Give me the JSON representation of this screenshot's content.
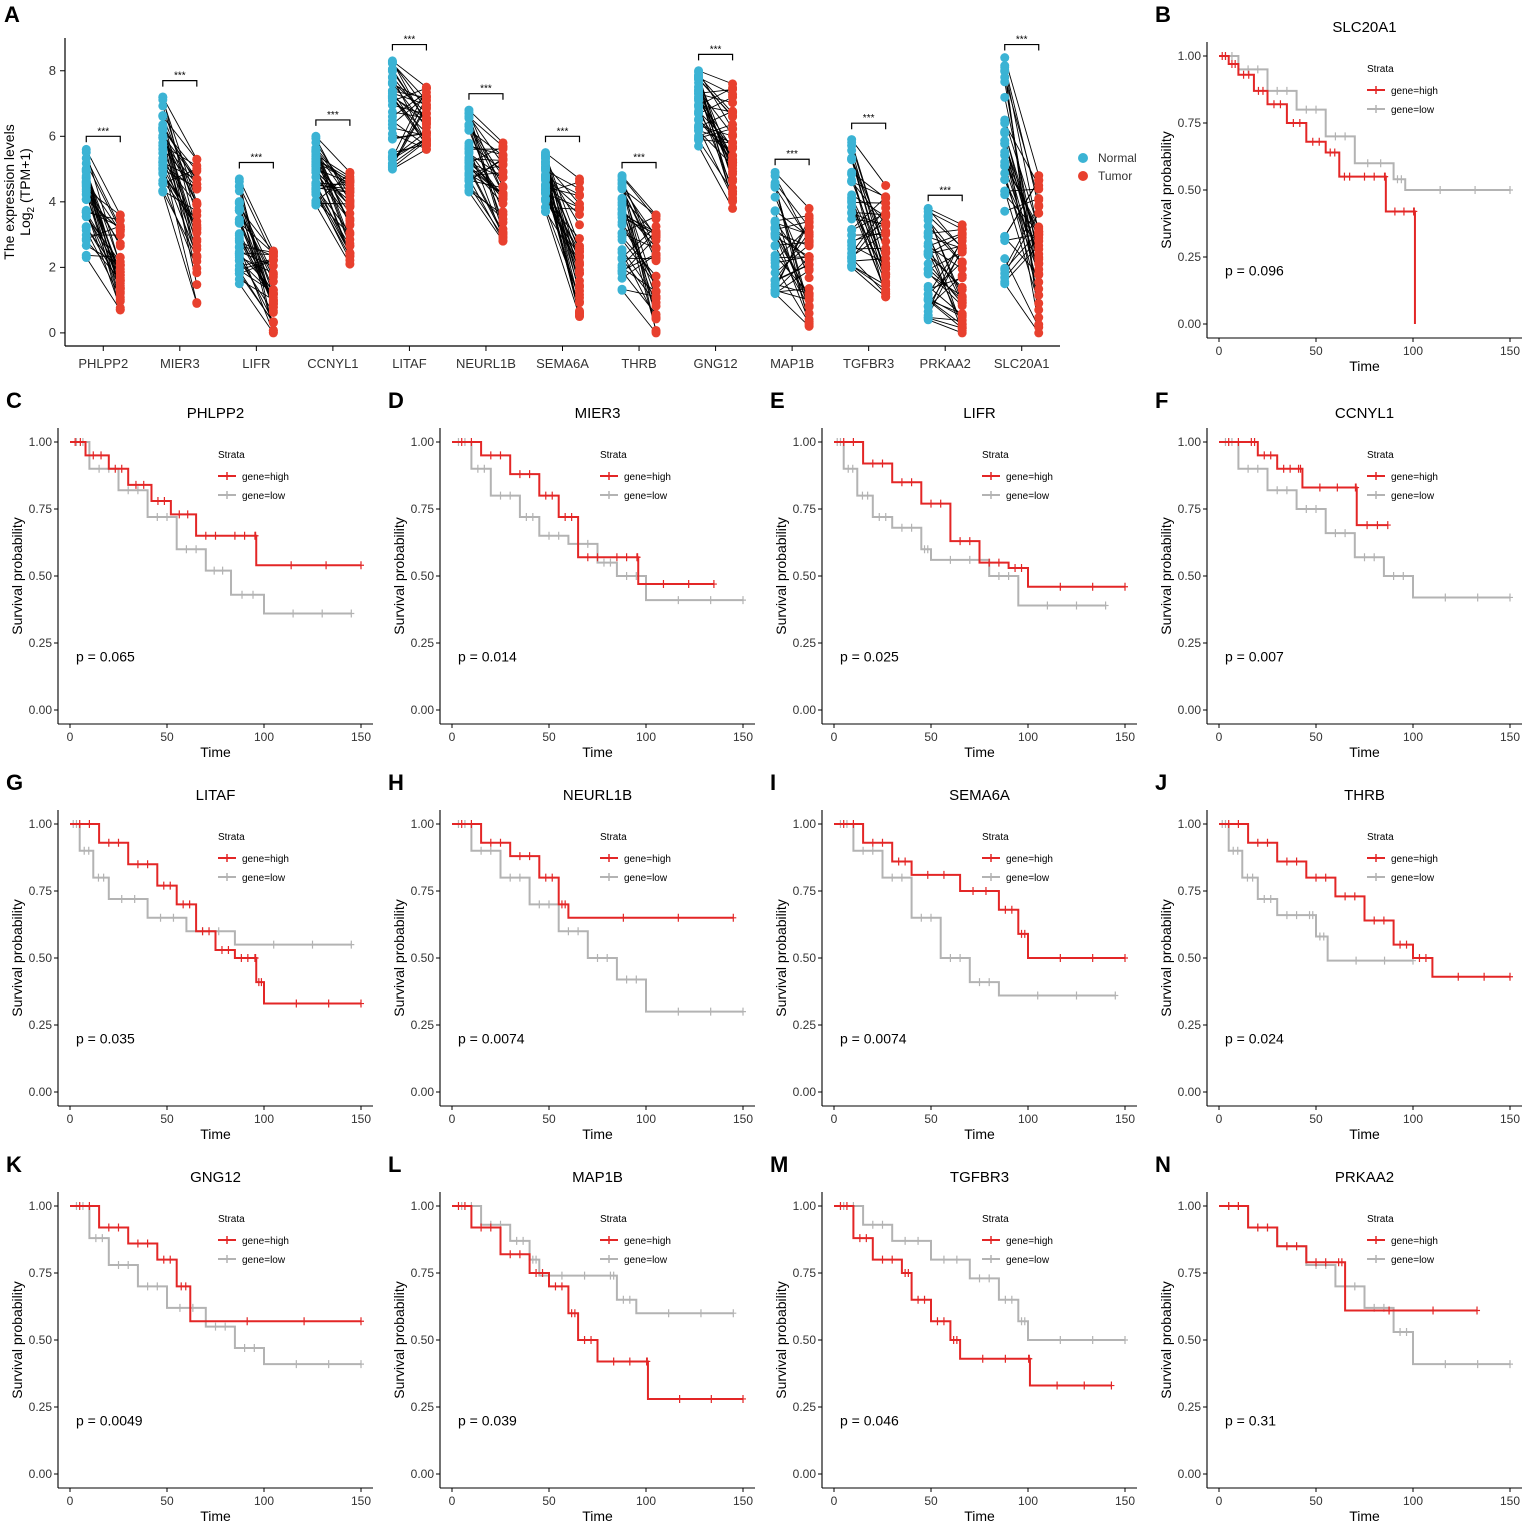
{
  "chart_data": [
    {
      "panel": "A",
      "type": "scatter",
      "subtype": "paired-dot-plot",
      "ylabel_line1": "The expression levels",
      "ylabel_line2": "Log",
      "ylabel_sub": "2",
      "ylabel_tail": " (TPM+1)",
      "ylim": [
        -0.4,
        9.0
      ],
      "yticks": [
        0,
        2,
        4,
        6,
        8
      ],
      "significance": "***",
      "legend": [
        {
          "name": "Normal",
          "color": "#3bb3d4"
        },
        {
          "name": "Tumor",
          "color": "#e8402e"
        }
      ],
      "genes": [
        {
          "name": "PHLPP2",
          "normal": [
            2.3,
            5.6
          ],
          "tumor": [
            0.7,
            3.6
          ],
          "bracket_y": 6.0
        },
        {
          "name": "MIER3",
          "normal": [
            4.3,
            7.2
          ],
          "tumor": [
            0.9,
            5.3
          ],
          "bracket_y": 7.7
        },
        {
          "name": "LIFR",
          "normal": [
            1.5,
            4.7
          ],
          "tumor": [
            0.0,
            2.5
          ],
          "bracket_y": 5.2
        },
        {
          "name": "CCNYL1",
          "normal": [
            3.9,
            6.0
          ],
          "tumor": [
            2.1,
            4.9
          ],
          "bracket_y": 6.5
        },
        {
          "name": "LITAF",
          "normal": [
            5.0,
            8.3
          ],
          "tumor": [
            5.6,
            7.5
          ],
          "bracket_y": 8.8
        },
        {
          "name": "NEURL1B",
          "normal": [
            4.3,
            6.8
          ],
          "tumor": [
            2.8,
            5.8
          ],
          "bracket_y": 7.3
        },
        {
          "name": "SEMA6A",
          "normal": [
            3.7,
            5.5
          ],
          "tumor": [
            0.5,
            4.7
          ],
          "bracket_y": 6.0
        },
        {
          "name": "THRB",
          "normal": [
            1.3,
            4.8
          ],
          "tumor": [
            0.0,
            3.6
          ],
          "bracket_y": 5.2
        },
        {
          "name": "GNG12",
          "normal": [
            5.7,
            8.0
          ],
          "tumor": [
            3.8,
            7.6
          ],
          "bracket_y": 8.5
        },
        {
          "name": "MAP1B",
          "normal": [
            1.2,
            4.9
          ],
          "tumor": [
            0.2,
            3.8
          ],
          "bracket_y": 5.3
        },
        {
          "name": "TGFBR3",
          "normal": [
            2.0,
            5.9
          ],
          "tumor": [
            1.1,
            4.5
          ],
          "bracket_y": 6.4
        },
        {
          "name": "PRKAA2",
          "normal": [
            0.4,
            3.8
          ],
          "tumor": [
            0.0,
            3.3
          ],
          "bracket_y": 4.2
        },
        {
          "name": "SLC20A1",
          "normal": [
            1.5,
            8.4
          ],
          "tumor": [
            0.0,
            4.8
          ],
          "bracket_y": 8.8
        }
      ]
    },
    {
      "panel": "B",
      "type": "line",
      "subtype": "kaplan-meier",
      "title": "SLC20A1",
      "pvalue": "p = 0.096",
      "high": [
        [
          0,
          1.0
        ],
        [
          5,
          0.97
        ],
        [
          10,
          0.93
        ],
        [
          18,
          0.87
        ],
        [
          25,
          0.82
        ],
        [
          35,
          0.75
        ],
        [
          45,
          0.68
        ],
        [
          55,
          0.64
        ],
        [
          62,
          0.55
        ],
        [
          70,
          0.55
        ],
        [
          85,
          0.55
        ],
        [
          86,
          0.42
        ],
        [
          100,
          0.42
        ],
        [
          101,
          0.0
        ]
      ],
      "low": [
        [
          0,
          1.0
        ],
        [
          10,
          0.95
        ],
        [
          25,
          0.87
        ],
        [
          40,
          0.8
        ],
        [
          55,
          0.7
        ],
        [
          70,
          0.6
        ],
        [
          90,
          0.54
        ],
        [
          96,
          0.5
        ],
        [
          150,
          0.5
        ]
      ]
    },
    {
      "panel": "C",
      "type": "line",
      "subtype": "kaplan-meier",
      "title": "PHLPP2",
      "pvalue": "p = 0.065",
      "high": [
        [
          0,
          1.0
        ],
        [
          8,
          0.95
        ],
        [
          20,
          0.9
        ],
        [
          30,
          0.84
        ],
        [
          42,
          0.78
        ],
        [
          52,
          0.73
        ],
        [
          65,
          0.65
        ],
        [
          80,
          0.65
        ],
        [
          95,
          0.65
        ],
        [
          96,
          0.54
        ],
        [
          150,
          0.54
        ]
      ],
      "low": [
        [
          0,
          1.0
        ],
        [
          10,
          0.9
        ],
        [
          25,
          0.82
        ],
        [
          40,
          0.72
        ],
        [
          55,
          0.6
        ],
        [
          70,
          0.52
        ],
        [
          83,
          0.43
        ],
        [
          100,
          0.36
        ],
        [
          145,
          0.36
        ]
      ]
    },
    {
      "panel": "D",
      "type": "line",
      "subtype": "kaplan-meier",
      "title": "MIER3",
      "pvalue": "p = 0.014",
      "high": [
        [
          0,
          1.0
        ],
        [
          15,
          0.95
        ],
        [
          30,
          0.88
        ],
        [
          45,
          0.8
        ],
        [
          55,
          0.72
        ],
        [
          65,
          0.57
        ],
        [
          80,
          0.57
        ],
        [
          95,
          0.57
        ],
        [
          96,
          0.47
        ],
        [
          135,
          0.47
        ]
      ],
      "low": [
        [
          0,
          1.0
        ],
        [
          10,
          0.9
        ],
        [
          20,
          0.8
        ],
        [
          35,
          0.72
        ],
        [
          45,
          0.65
        ],
        [
          60,
          0.62
        ],
        [
          75,
          0.55
        ],
        [
          85,
          0.5
        ],
        [
          100,
          0.41
        ],
        [
          150,
          0.41
        ]
      ]
    },
    {
      "panel": "E",
      "type": "line",
      "subtype": "kaplan-meier",
      "title": "LIFR",
      "pvalue": "p = 0.025",
      "high": [
        [
          0,
          1.0
        ],
        [
          15,
          0.92
        ],
        [
          30,
          0.85
        ],
        [
          45,
          0.77
        ],
        [
          60,
          0.63
        ],
        [
          75,
          0.55
        ],
        [
          90,
          0.53
        ],
        [
          100,
          0.46
        ],
        [
          150,
          0.46
        ]
      ],
      "low": [
        [
          0,
          1.0
        ],
        [
          5,
          0.9
        ],
        [
          12,
          0.8
        ],
        [
          20,
          0.72
        ],
        [
          30,
          0.68
        ],
        [
          45,
          0.6
        ],
        [
          50,
          0.56
        ],
        [
          80,
          0.5
        ],
        [
          95,
          0.39
        ],
        [
          140,
          0.39
        ]
      ]
    },
    {
      "panel": "F",
      "type": "line",
      "subtype": "kaplan-meier",
      "title": "CCNYL1",
      "pvalue": "p = 0.007",
      "high": [
        [
          0,
          1.0
        ],
        [
          15,
          1.0
        ],
        [
          20,
          0.95
        ],
        [
          30,
          0.9
        ],
        [
          40,
          0.9
        ],
        [
          43,
          0.83
        ],
        [
          70,
          0.83
        ],
        [
          71,
          0.69
        ],
        [
          87,
          0.69
        ]
      ],
      "low": [
        [
          0,
          1.0
        ],
        [
          10,
          0.9
        ],
        [
          25,
          0.82
        ],
        [
          40,
          0.75
        ],
        [
          55,
          0.66
        ],
        [
          70,
          0.57
        ],
        [
          85,
          0.5
        ],
        [
          100,
          0.42
        ],
        [
          150,
          0.42
        ]
      ]
    },
    {
      "panel": "G",
      "type": "line",
      "subtype": "kaplan-meier",
      "title": "LITAF",
      "pvalue": "p = 0.035",
      "high": [
        [
          0,
          1.0
        ],
        [
          15,
          0.93
        ],
        [
          30,
          0.85
        ],
        [
          45,
          0.77
        ],
        [
          55,
          0.7
        ],
        [
          65,
          0.6
        ],
        [
          75,
          0.53
        ],
        [
          85,
          0.5
        ],
        [
          95,
          0.5
        ],
        [
          96,
          0.41
        ],
        [
          100,
          0.33
        ],
        [
          150,
          0.33
        ]
      ],
      "low": [
        [
          0,
          1.0
        ],
        [
          5,
          0.9
        ],
        [
          12,
          0.8
        ],
        [
          20,
          0.72
        ],
        [
          40,
          0.65
        ],
        [
          60,
          0.6
        ],
        [
          85,
          0.55
        ],
        [
          145,
          0.55
        ]
      ]
    },
    {
      "panel": "H",
      "type": "line",
      "subtype": "kaplan-meier",
      "title": "NEURL1B",
      "pvalue": "p = 0.0074",
      "high": [
        [
          0,
          1.0
        ],
        [
          15,
          0.93
        ],
        [
          30,
          0.88
        ],
        [
          45,
          0.8
        ],
        [
          55,
          0.7
        ],
        [
          60,
          0.65
        ],
        [
          145,
          0.65
        ]
      ],
      "low": [
        [
          0,
          1.0
        ],
        [
          10,
          0.9
        ],
        [
          25,
          0.8
        ],
        [
          40,
          0.7
        ],
        [
          55,
          0.6
        ],
        [
          70,
          0.5
        ],
        [
          85,
          0.42
        ],
        [
          100,
          0.3
        ],
        [
          150,
          0.3
        ]
      ]
    },
    {
      "panel": "I",
      "type": "line",
      "subtype": "kaplan-meier",
      "title": "SEMA6A",
      "pvalue": "p = 0.0074",
      "high": [
        [
          0,
          1.0
        ],
        [
          15,
          0.93
        ],
        [
          30,
          0.86
        ],
        [
          40,
          0.81
        ],
        [
          65,
          0.75
        ],
        [
          85,
          0.68
        ],
        [
          95,
          0.59
        ],
        [
          100,
          0.5
        ],
        [
          150,
          0.5
        ]
      ],
      "low": [
        [
          0,
          1.0
        ],
        [
          10,
          0.9
        ],
        [
          25,
          0.8
        ],
        [
          40,
          0.65
        ],
        [
          55,
          0.5
        ],
        [
          70,
          0.41
        ],
        [
          85,
          0.36
        ],
        [
          145,
          0.36
        ]
      ]
    },
    {
      "panel": "J",
      "type": "line",
      "subtype": "kaplan-meier",
      "title": "THRB",
      "pvalue": "p = 0.024",
      "high": [
        [
          0,
          1.0
        ],
        [
          15,
          0.93
        ],
        [
          30,
          0.86
        ],
        [
          45,
          0.8
        ],
        [
          60,
          0.73
        ],
        [
          75,
          0.64
        ],
        [
          90,
          0.55
        ],
        [
          100,
          0.5
        ],
        [
          110,
          0.43
        ],
        [
          150,
          0.43
        ]
      ],
      "low": [
        [
          0,
          1.0
        ],
        [
          5,
          0.9
        ],
        [
          12,
          0.8
        ],
        [
          20,
          0.72
        ],
        [
          30,
          0.66
        ],
        [
          45,
          0.66
        ],
        [
          50,
          0.58
        ],
        [
          56,
          0.49
        ],
        [
          100,
          0.49
        ]
      ]
    },
    {
      "panel": "K",
      "type": "line",
      "subtype": "kaplan-meier",
      "title": "GNG12",
      "pvalue": "p = 0.0049",
      "high": [
        [
          0,
          1.0
        ],
        [
          15,
          0.92
        ],
        [
          30,
          0.86
        ],
        [
          45,
          0.8
        ],
        [
          55,
          0.7
        ],
        [
          62,
          0.57
        ],
        [
          150,
          0.57
        ]
      ],
      "low": [
        [
          0,
          1.0
        ],
        [
          10,
          0.88
        ],
        [
          20,
          0.78
        ],
        [
          35,
          0.7
        ],
        [
          50,
          0.62
        ],
        [
          70,
          0.55
        ],
        [
          85,
          0.47
        ],
        [
          100,
          0.41
        ],
        [
          150,
          0.41
        ]
      ]
    },
    {
      "panel": "L",
      "type": "line",
      "subtype": "kaplan-meier",
      "title": "MAP1B",
      "pvalue": "p = 0.039",
      "high": [
        [
          0,
          1.0
        ],
        [
          10,
          0.92
        ],
        [
          25,
          0.82
        ],
        [
          40,
          0.75
        ],
        [
          50,
          0.7
        ],
        [
          60,
          0.6
        ],
        [
          65,
          0.5
        ],
        [
          75,
          0.42
        ],
        [
          100,
          0.42
        ],
        [
          101,
          0.28
        ],
        [
          150,
          0.28
        ]
      ],
      "low": [
        [
          0,
          1.0
        ],
        [
          15,
          0.93
        ],
        [
          30,
          0.87
        ],
        [
          40,
          0.8
        ],
        [
          45,
          0.74
        ],
        [
          80,
          0.74
        ],
        [
          85,
          0.65
        ],
        [
          95,
          0.6
        ],
        [
          145,
          0.6
        ]
      ]
    },
    {
      "panel": "M",
      "type": "line",
      "subtype": "kaplan-meier",
      "title": "TGFBR3",
      "pvalue": "p = 0.046",
      "high": [
        [
          0,
          1.0
        ],
        [
          10,
          0.88
        ],
        [
          20,
          0.8
        ],
        [
          35,
          0.75
        ],
        [
          40,
          0.65
        ],
        [
          50,
          0.57
        ],
        [
          60,
          0.5
        ],
        [
          65,
          0.43
        ],
        [
          100,
          0.43
        ],
        [
          101,
          0.33
        ],
        [
          143,
          0.33
        ]
      ],
      "low": [
        [
          0,
          1.0
        ],
        [
          15,
          0.93
        ],
        [
          30,
          0.87
        ],
        [
          50,
          0.8
        ],
        [
          70,
          0.73
        ],
        [
          85,
          0.65
        ],
        [
          95,
          0.57
        ],
        [
          100,
          0.5
        ],
        [
          150,
          0.5
        ]
      ]
    },
    {
      "panel": "N",
      "type": "line",
      "subtype": "kaplan-meier",
      "title": "PRKAA2",
      "pvalue": "p = 0.31",
      "high": [
        [
          0,
          1.0
        ],
        [
          15,
          0.92
        ],
        [
          30,
          0.85
        ],
        [
          45,
          0.79
        ],
        [
          60,
          0.79
        ],
        [
          65,
          0.61
        ],
        [
          133,
          0.61
        ]
      ],
      "low": [
        [
          0,
          1.0
        ],
        [
          15,
          0.92
        ],
        [
          30,
          0.85
        ],
        [
          45,
          0.78
        ],
        [
          60,
          0.7
        ],
        [
          75,
          0.62
        ],
        [
          90,
          0.53
        ],
        [
          100,
          0.41
        ],
        [
          150,
          0.41
        ]
      ]
    }
  ],
  "shared": {
    "km_ylabel": "Survival probability",
    "km_xlabel": "Time",
    "km_yticks": [
      "0.00",
      "0.25",
      "0.50",
      "0.75",
      "1.00"
    ],
    "km_xticks": [
      "0",
      "50",
      "100",
      "150"
    ],
    "strata_title": "Strata",
    "strata_high": "gene=high",
    "strata_low": "gene=low",
    "high_color": "#e32626",
    "low_color": "#b3b3b3"
  }
}
